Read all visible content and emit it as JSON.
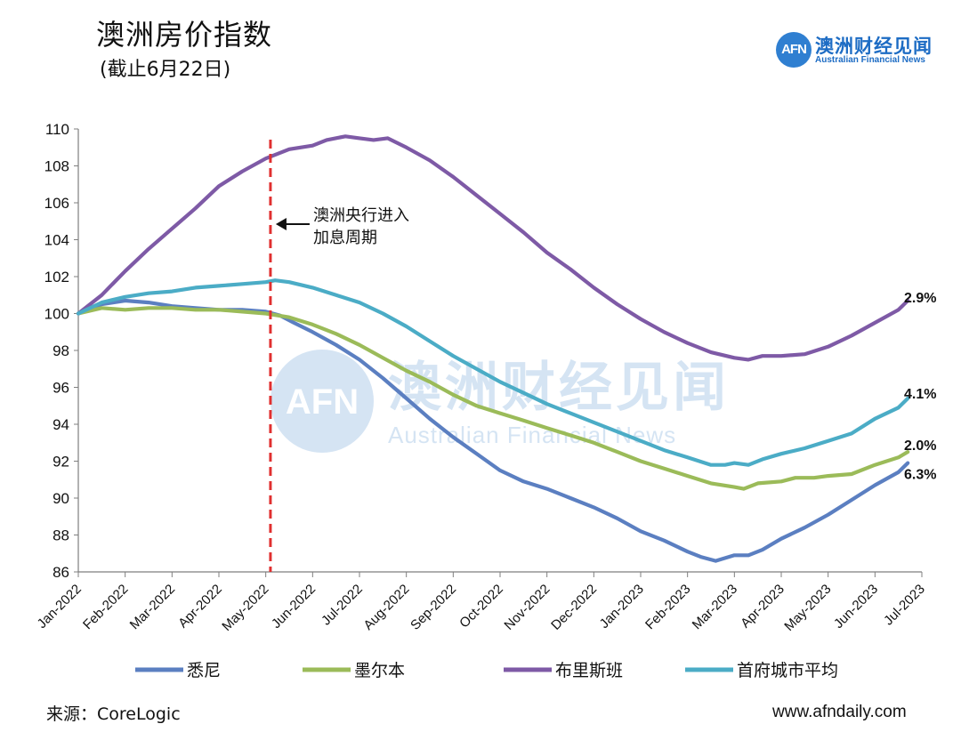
{
  "header": {
    "title": "澳洲房价指数",
    "subtitle": "(截止6月22日)"
  },
  "logo": {
    "mark": "AFN",
    "name": "澳洲财经见闻",
    "english": "Australian Financial News"
  },
  "watermark": {
    "mark": "AFN",
    "name": "澳洲财经见闻",
    "english": "Australian Financial News"
  },
  "footer": {
    "source": "来源：CoreLogic",
    "website": "www.afndaily.com"
  },
  "colors": {
    "sydney": "#5b7fc1",
    "melbourne": "#9bbb59",
    "brisbane": "#7e5aa6",
    "capitals": "#4bacc6",
    "marker": "#e03030",
    "axis": "#7f7f7f",
    "brand": "#1d6cc4"
  },
  "chart_data": {
    "type": "line",
    "title": "澳洲房价指数",
    "xlabel": "",
    "ylabel": "",
    "ylim": [
      86,
      110
    ],
    "yticks": [
      86,
      88,
      90,
      92,
      94,
      96,
      98,
      100,
      102,
      104,
      106,
      108,
      110
    ],
    "xrange": [
      0,
      18
    ],
    "xtick_labels": [
      "Jan-2022",
      "Feb-2022",
      "Mar-2022",
      "Apr-2022",
      "May-2022",
      "Jun-2022",
      "Jul-2022",
      "Aug-2022",
      "Sep-2022",
      "Oct-2022",
      "Nov-2022",
      "Dec-2022",
      "Jan-2023",
      "Feb-2023",
      "Mar-2023",
      "Apr-2023",
      "May-2023",
      "Jun-2023",
      "Jul-2023"
    ],
    "grid": false,
    "legend_position": "bottom",
    "annotation": {
      "line1": "澳洲央行进入",
      "line2": "加息周期",
      "x": 4.1
    },
    "series": [
      {
        "name": "悉尼",
        "key": "sydney",
        "end_label": "6.3%",
        "points": [
          [
            0,
            100
          ],
          [
            0.5,
            100.5
          ],
          [
            1,
            100.7
          ],
          [
            1.5,
            100.6
          ],
          [
            2,
            100.4
          ],
          [
            2.5,
            100.3
          ],
          [
            3,
            100.2
          ],
          [
            3.5,
            100.2
          ],
          [
            4,
            100.1
          ],
          [
            4.3,
            99.9
          ],
          [
            4.6,
            99.5
          ],
          [
            5,
            99.0
          ],
          [
            5.5,
            98.3
          ],
          [
            6,
            97.5
          ],
          [
            6.5,
            96.5
          ],
          [
            7,
            95.4
          ],
          [
            7.5,
            94.3
          ],
          [
            8,
            93.3
          ],
          [
            8.5,
            92.4
          ],
          [
            9,
            91.5
          ],
          [
            9.5,
            90.9
          ],
          [
            10,
            90.5
          ],
          [
            10.5,
            90.0
          ],
          [
            11,
            89.5
          ],
          [
            11.5,
            88.9
          ],
          [
            12,
            88.2
          ],
          [
            12.5,
            87.7
          ],
          [
            13,
            87.1
          ],
          [
            13.3,
            86.8
          ],
          [
            13.6,
            86.6
          ],
          [
            14,
            86.9
          ],
          [
            14.3,
            86.9
          ],
          [
            14.6,
            87.2
          ],
          [
            15,
            87.8
          ],
          [
            15.5,
            88.4
          ],
          [
            16,
            89.1
          ],
          [
            16.5,
            89.9
          ],
          [
            17,
            90.7
          ],
          [
            17.5,
            91.4
          ],
          [
            17.7,
            91.9
          ]
        ]
      },
      {
        "name": "墨尔本",
        "key": "melbourne",
        "end_label": "2.0%",
        "points": [
          [
            0,
            100
          ],
          [
            0.5,
            100.3
          ],
          [
            1,
            100.2
          ],
          [
            1.5,
            100.3
          ],
          [
            2,
            100.3
          ],
          [
            2.5,
            100.2
          ],
          [
            3,
            100.2
          ],
          [
            3.5,
            100.1
          ],
          [
            4,
            100.0
          ],
          [
            4.5,
            99.8
          ],
          [
            5,
            99.4
          ],
          [
            5.5,
            98.9
          ],
          [
            6,
            98.3
          ],
          [
            6.5,
            97.6
          ],
          [
            7,
            96.9
          ],
          [
            7.5,
            96.3
          ],
          [
            8,
            95.6
          ],
          [
            8.5,
            95.0
          ],
          [
            9,
            94.6
          ],
          [
            9.5,
            94.2
          ],
          [
            10,
            93.8
          ],
          [
            10.5,
            93.4
          ],
          [
            11,
            93.0
          ],
          [
            11.5,
            92.5
          ],
          [
            12,
            92.0
          ],
          [
            12.5,
            91.6
          ],
          [
            13,
            91.2
          ],
          [
            13.5,
            90.8
          ],
          [
            14,
            90.6
          ],
          [
            14.2,
            90.5
          ],
          [
            14.5,
            90.8
          ],
          [
            15,
            90.9
          ],
          [
            15.3,
            91.1
          ],
          [
            15.7,
            91.1
          ],
          [
            16,
            91.2
          ],
          [
            16.5,
            91.3
          ],
          [
            17,
            91.8
          ],
          [
            17.5,
            92.2
          ],
          [
            17.7,
            92.5
          ]
        ]
      },
      {
        "name": "布里斯班",
        "key": "brisbane",
        "end_label": "2.9%",
        "points": [
          [
            0,
            100
          ],
          [
            0.5,
            101.0
          ],
          [
            1,
            102.3
          ],
          [
            1.5,
            103.5
          ],
          [
            2,
            104.6
          ],
          [
            2.5,
            105.7
          ],
          [
            3,
            106.9
          ],
          [
            3.5,
            107.7
          ],
          [
            4,
            108.4
          ],
          [
            4.5,
            108.9
          ],
          [
            5,
            109.1
          ],
          [
            5.3,
            109.4
          ],
          [
            5.7,
            109.6
          ],
          [
            6,
            109.5
          ],
          [
            6.3,
            109.4
          ],
          [
            6.6,
            109.5
          ],
          [
            7,
            109.0
          ],
          [
            7.5,
            108.3
          ],
          [
            8,
            107.4
          ],
          [
            8.5,
            106.4
          ],
          [
            9,
            105.4
          ],
          [
            9.5,
            104.4
          ],
          [
            10,
            103.3
          ],
          [
            10.5,
            102.4
          ],
          [
            11,
            101.4
          ],
          [
            11.5,
            100.5
          ],
          [
            12,
            99.7
          ],
          [
            12.5,
            99.0
          ],
          [
            13,
            98.4
          ],
          [
            13.5,
            97.9
          ],
          [
            14,
            97.6
          ],
          [
            14.3,
            97.5
          ],
          [
            14.6,
            97.7
          ],
          [
            15,
            97.7
          ],
          [
            15.5,
            97.8
          ],
          [
            16,
            98.2
          ],
          [
            16.5,
            98.8
          ],
          [
            17,
            99.5
          ],
          [
            17.5,
            100.2
          ],
          [
            17.7,
            100.7
          ]
        ]
      },
      {
        "name": "首府城市平均",
        "key": "capitals",
        "end_label": "4.1%",
        "points": [
          [
            0,
            100
          ],
          [
            0.5,
            100.6
          ],
          [
            1,
            100.9
          ],
          [
            1.5,
            101.1
          ],
          [
            2,
            101.2
          ],
          [
            2.5,
            101.4
          ],
          [
            3,
            101.5
          ],
          [
            3.5,
            101.6
          ],
          [
            4,
            101.7
          ],
          [
            4.2,
            101.8
          ],
          [
            4.5,
            101.7
          ],
          [
            5,
            101.4
          ],
          [
            5.5,
            101.0
          ],
          [
            6,
            100.6
          ],
          [
            6.5,
            100.0
          ],
          [
            7,
            99.3
          ],
          [
            7.5,
            98.5
          ],
          [
            8,
            97.7
          ],
          [
            8.5,
            97.0
          ],
          [
            9,
            96.3
          ],
          [
            9.5,
            95.7
          ],
          [
            10,
            95.1
          ],
          [
            10.5,
            94.6
          ],
          [
            11,
            94.1
          ],
          [
            11.5,
            93.6
          ],
          [
            12,
            93.1
          ],
          [
            12.5,
            92.6
          ],
          [
            13,
            92.2
          ],
          [
            13.5,
            91.8
          ],
          [
            13.8,
            91.8
          ],
          [
            14,
            91.9
          ],
          [
            14.3,
            91.8
          ],
          [
            14.6,
            92.1
          ],
          [
            15,
            92.4
          ],
          [
            15.5,
            92.7
          ],
          [
            16,
            93.1
          ],
          [
            16.5,
            93.5
          ],
          [
            17,
            94.3
          ],
          [
            17.5,
            94.9
          ],
          [
            17.7,
            95.4
          ]
        ]
      }
    ]
  }
}
